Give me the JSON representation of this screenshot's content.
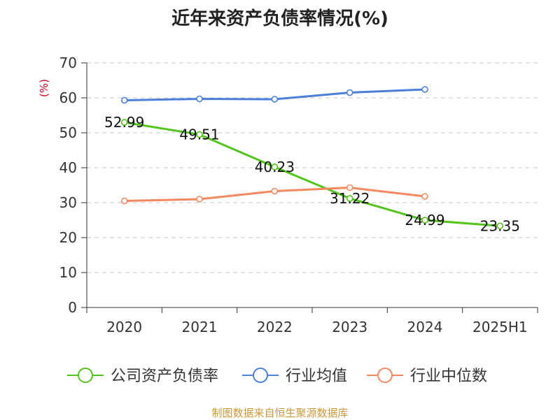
{
  "chart_data": {
    "type": "line",
    "title": "近年来资产负债率情况(%)",
    "ylabel": "(%)",
    "categories": [
      "2020",
      "2021",
      "2022",
      "2023",
      "2024",
      "2025H1"
    ],
    "yticks": [
      "0",
      "10",
      "20",
      "30",
      "40",
      "50",
      "60",
      "70"
    ],
    "ylim": [
      0,
      70
    ],
    "grid": "horizontal-dashed",
    "legend_position": "bottom",
    "series": [
      {
        "name": "公司资产负债率",
        "color": "#52c41a",
        "values": [
          52.99,
          49.51,
          40.23,
          31.22,
          24.99,
          23.35
        ],
        "labels": [
          "52.99",
          "49.51",
          "40.23",
          "31.22",
          "24.99",
          "23.35"
        ]
      },
      {
        "name": "行业均值",
        "color": "#4a7fdc",
        "values": [
          59.3,
          59.7,
          59.6,
          61.5,
          62.4,
          null
        ]
      },
      {
        "name": "行业中位数",
        "color": "#f4895f",
        "values": [
          30.5,
          31.0,
          33.3,
          34.3,
          31.8,
          null
        ]
      }
    ]
  },
  "footer": {
    "source": "制图数据来自恒生聚源数据库",
    "source_color": "#c9993a"
  }
}
